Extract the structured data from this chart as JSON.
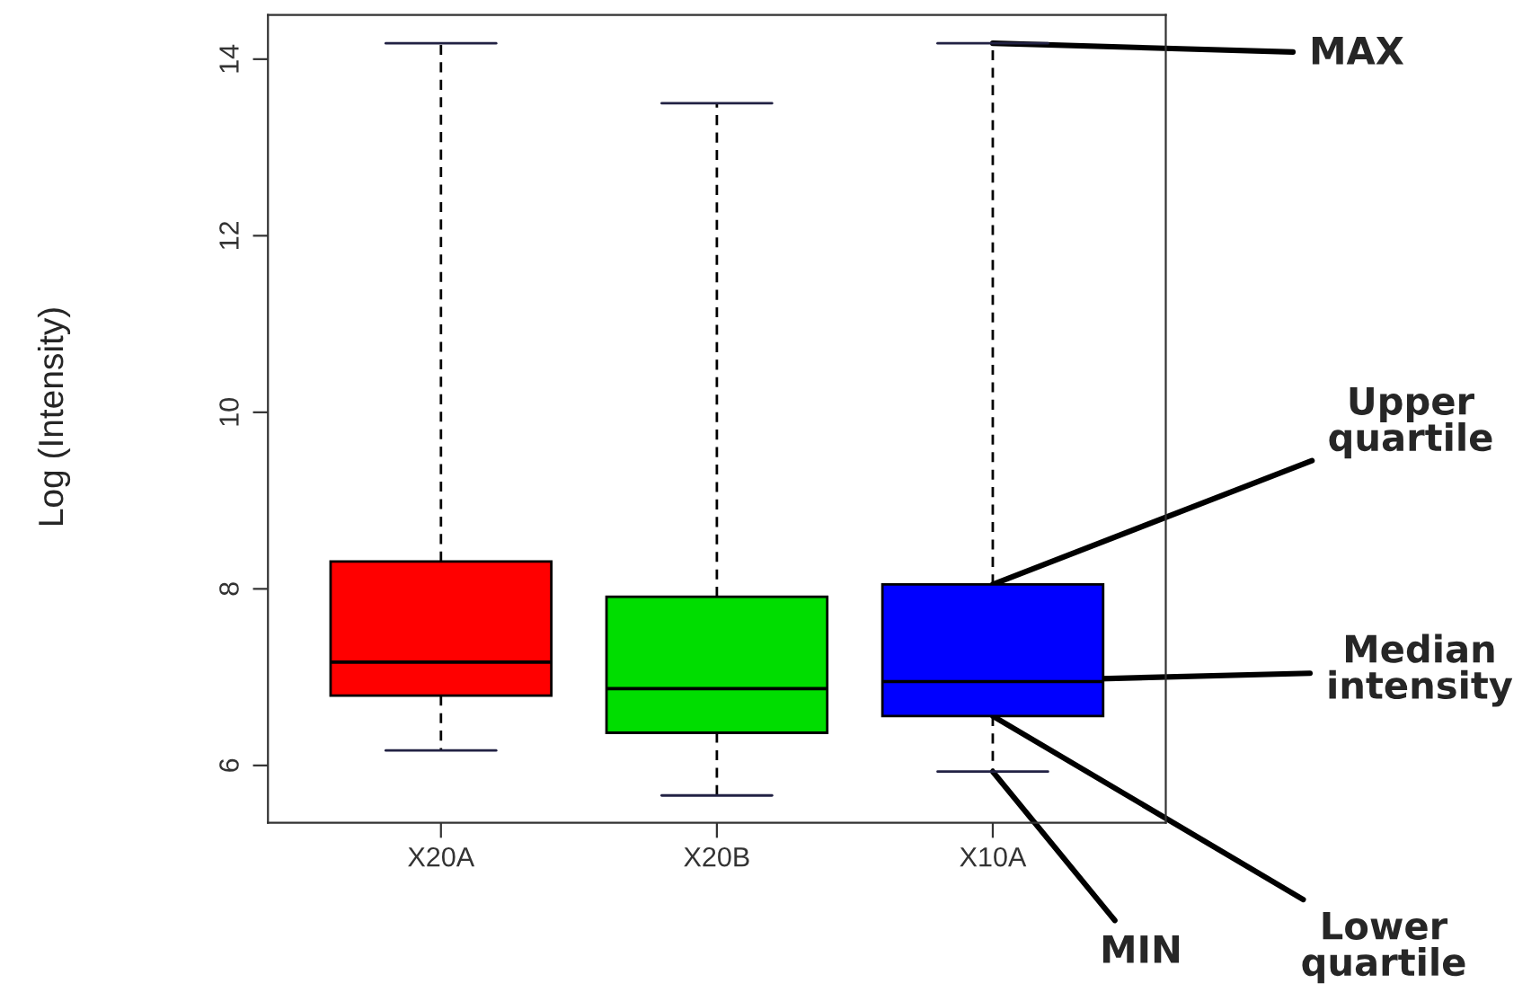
{
  "chart_data": {
    "type": "box",
    "ylabel": "Log (Intensity)",
    "categories": [
      "X20A",
      "X20B",
      "X10A"
    ],
    "colors": [
      "#ff0000",
      "#00dd00",
      "#0000ff"
    ],
    "boxes": [
      {
        "low": 6.17,
        "q1": 6.79,
        "median": 7.17,
        "q3": 8.31,
        "high": 14.18
      },
      {
        "low": 5.66,
        "q1": 6.37,
        "median": 6.87,
        "q3": 7.91,
        "high": 13.5
      },
      {
        "low": 5.93,
        "q1": 6.56,
        "median": 6.95,
        "q3": 8.05,
        "high": 14.18
      }
    ],
    "ylim": [
      5.35,
      14.5
    ],
    "yticks": [
      6,
      8,
      10,
      12,
      14
    ],
    "grid": false,
    "annotations": [
      {
        "text": "MAX",
        "x": "X10A",
        "y": 14.18
      },
      {
        "text": "Upper\nquartile",
        "x": "X10A",
        "y": 8.05
      },
      {
        "text": "Median\nintensity",
        "x": "X10A",
        "y": 6.95
      },
      {
        "text": "Lower\nquartile",
        "x": "X10A",
        "y": 6.56
      },
      {
        "text": "MIN",
        "x": "X10A",
        "y": 5.93
      }
    ]
  }
}
